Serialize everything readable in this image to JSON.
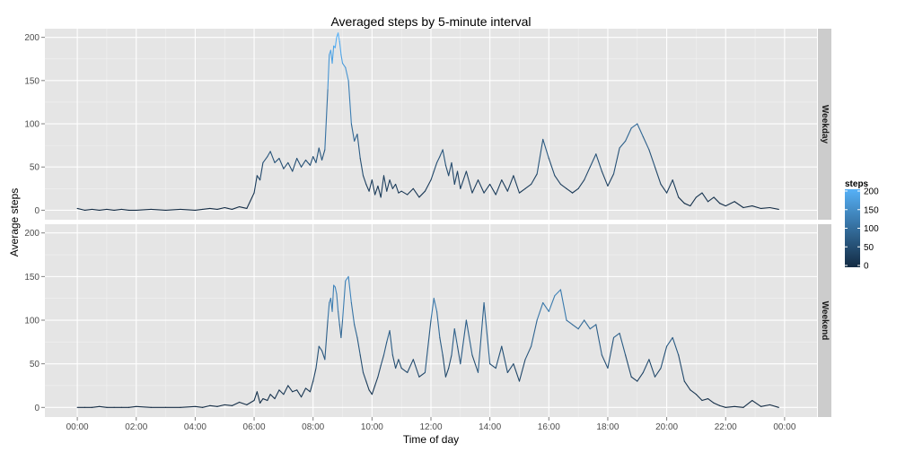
{
  "chart_data": {
    "type": "line",
    "title": "Averaged steps by 5-minute interval",
    "xlabel": "Time of day",
    "ylabel": "Average steps",
    "x_tick_labels": [
      "00:00",
      "02:00",
      "04:00",
      "06:00",
      "08:00",
      "10:00",
      "12:00",
      "14:00",
      "16:00",
      "18:00",
      "20:00",
      "22:00",
      "00:00"
    ],
    "x_tick_hours": [
      0,
      2,
      4,
      6,
      8,
      10,
      12,
      14,
      16,
      18,
      20,
      22,
      24
    ],
    "xlim_hours": [
      -1.1,
      25.1
    ],
    "y_tick_labels": [
      "0",
      "50",
      "100",
      "150",
      "200"
    ],
    "y_tick_values": [
      0,
      50,
      100,
      150,
      200
    ],
    "ylim": [
      -11,
      210
    ],
    "panels": [
      {
        "name": "Weekday",
        "points": [
          [
            0.0,
            2
          ],
          [
            0.25,
            0
          ],
          [
            0.5,
            1
          ],
          [
            0.75,
            0
          ],
          [
            1.0,
            1
          ],
          [
            1.25,
            0
          ],
          [
            1.5,
            1
          ],
          [
            1.75,
            0
          ],
          [
            2.0,
            0
          ],
          [
            2.5,
            1
          ],
          [
            3.0,
            0
          ],
          [
            3.5,
            1
          ],
          [
            4.0,
            0
          ],
          [
            4.25,
            1
          ],
          [
            4.5,
            2
          ],
          [
            4.75,
            1
          ],
          [
            5.0,
            3
          ],
          [
            5.25,
            1
          ],
          [
            5.5,
            4
          ],
          [
            5.75,
            2
          ],
          [
            6.0,
            20
          ],
          [
            6.1,
            40
          ],
          [
            6.2,
            35
          ],
          [
            6.3,
            55
          ],
          [
            6.45,
            62
          ],
          [
            6.55,
            68
          ],
          [
            6.7,
            55
          ],
          [
            6.85,
            60
          ],
          [
            7.0,
            48
          ],
          [
            7.15,
            55
          ],
          [
            7.3,
            45
          ],
          [
            7.45,
            60
          ],
          [
            7.6,
            50
          ],
          [
            7.75,
            58
          ],
          [
            7.9,
            52
          ],
          [
            8.0,
            62
          ],
          [
            8.1,
            55
          ],
          [
            8.2,
            72
          ],
          [
            8.3,
            58
          ],
          [
            8.4,
            70
          ],
          [
            8.5,
            140
          ],
          [
            8.55,
            180
          ],
          [
            8.6,
            185
          ],
          [
            8.65,
            170
          ],
          [
            8.7,
            190
          ],
          [
            8.75,
            188
          ],
          [
            8.8,
            200
          ],
          [
            8.85,
            205
          ],
          [
            8.9,
            195
          ],
          [
            8.95,
            180
          ],
          [
            9.0,
            170
          ],
          [
            9.1,
            165
          ],
          [
            9.2,
            150
          ],
          [
            9.3,
            100
          ],
          [
            9.4,
            80
          ],
          [
            9.5,
            88
          ],
          [
            9.6,
            60
          ],
          [
            9.7,
            40
          ],
          [
            9.8,
            30
          ],
          [
            9.9,
            22
          ],
          [
            10.0,
            35
          ],
          [
            10.1,
            18
          ],
          [
            10.2,
            28
          ],
          [
            10.3,
            15
          ],
          [
            10.4,
            40
          ],
          [
            10.5,
            22
          ],
          [
            10.6,
            35
          ],
          [
            10.7,
            25
          ],
          [
            10.8,
            30
          ],
          [
            10.9,
            20
          ],
          [
            11.0,
            22
          ],
          [
            11.2,
            18
          ],
          [
            11.4,
            25
          ],
          [
            11.6,
            15
          ],
          [
            11.8,
            22
          ],
          [
            12.0,
            35
          ],
          [
            12.1,
            45
          ],
          [
            12.2,
            55
          ],
          [
            12.3,
            62
          ],
          [
            12.4,
            70
          ],
          [
            12.5,
            52
          ],
          [
            12.6,
            40
          ],
          [
            12.7,
            55
          ],
          [
            12.8,
            30
          ],
          [
            12.9,
            45
          ],
          [
            13.0,
            25
          ],
          [
            13.2,
            45
          ],
          [
            13.4,
            20
          ],
          [
            13.6,
            35
          ],
          [
            13.8,
            20
          ],
          [
            14.0,
            30
          ],
          [
            14.2,
            18
          ],
          [
            14.4,
            35
          ],
          [
            14.6,
            22
          ],
          [
            14.8,
            40
          ],
          [
            15.0,
            20
          ],
          [
            15.2,
            25
          ],
          [
            15.4,
            30
          ],
          [
            15.6,
            42
          ],
          [
            15.8,
            82
          ],
          [
            16.0,
            60
          ],
          [
            16.2,
            40
          ],
          [
            16.4,
            30
          ],
          [
            16.6,
            25
          ],
          [
            16.8,
            20
          ],
          [
            17.0,
            25
          ],
          [
            17.2,
            35
          ],
          [
            17.4,
            50
          ],
          [
            17.6,
            65
          ],
          [
            17.8,
            45
          ],
          [
            18.0,
            28
          ],
          [
            18.2,
            42
          ],
          [
            18.4,
            72
          ],
          [
            18.6,
            80
          ],
          [
            18.8,
            95
          ],
          [
            19.0,
            100
          ],
          [
            19.2,
            85
          ],
          [
            19.4,
            70
          ],
          [
            19.6,
            50
          ],
          [
            19.8,
            30
          ],
          [
            20.0,
            20
          ],
          [
            20.2,
            35
          ],
          [
            20.4,
            15
          ],
          [
            20.6,
            8
          ],
          [
            20.8,
            5
          ],
          [
            21.0,
            15
          ],
          [
            21.2,
            20
          ],
          [
            21.4,
            10
          ],
          [
            21.6,
            15
          ],
          [
            21.8,
            8
          ],
          [
            22.0,
            5
          ],
          [
            22.3,
            10
          ],
          [
            22.6,
            3
          ],
          [
            22.9,
            5
          ],
          [
            23.2,
            2
          ],
          [
            23.5,
            3
          ],
          [
            23.8,
            1
          ]
        ]
      },
      {
        "name": "Weekend",
        "points": [
          [
            0.0,
            0
          ],
          [
            0.25,
            0
          ],
          [
            0.5,
            0
          ],
          [
            0.75,
            1
          ],
          [
            1.0,
            0
          ],
          [
            1.25,
            0
          ],
          [
            1.5,
            0
          ],
          [
            1.75,
            0
          ],
          [
            2.0,
            1
          ],
          [
            2.5,
            0
          ],
          [
            3.0,
            0
          ],
          [
            3.5,
            0
          ],
          [
            4.0,
            1
          ],
          [
            4.25,
            0
          ],
          [
            4.5,
            2
          ],
          [
            4.75,
            1
          ],
          [
            5.0,
            3
          ],
          [
            5.25,
            2
          ],
          [
            5.5,
            6
          ],
          [
            5.75,
            3
          ],
          [
            6.0,
            8
          ],
          [
            6.1,
            18
          ],
          [
            6.2,
            5
          ],
          [
            6.3,
            10
          ],
          [
            6.45,
            8
          ],
          [
            6.55,
            15
          ],
          [
            6.7,
            10
          ],
          [
            6.85,
            20
          ],
          [
            7.0,
            15
          ],
          [
            7.15,
            25
          ],
          [
            7.3,
            18
          ],
          [
            7.45,
            20
          ],
          [
            7.6,
            12
          ],
          [
            7.75,
            22
          ],
          [
            7.9,
            18
          ],
          [
            8.0,
            30
          ],
          [
            8.1,
            45
          ],
          [
            8.2,
            70
          ],
          [
            8.3,
            65
          ],
          [
            8.4,
            55
          ],
          [
            8.5,
            100
          ],
          [
            8.55,
            120
          ],
          [
            8.6,
            125
          ],
          [
            8.65,
            110
          ],
          [
            8.7,
            140
          ],
          [
            8.75,
            138
          ],
          [
            8.8,
            130
          ],
          [
            8.85,
            110
          ],
          [
            8.9,
            95
          ],
          [
            8.95,
            80
          ],
          [
            9.0,
            100
          ],
          [
            9.1,
            145
          ],
          [
            9.2,
            150
          ],
          [
            9.3,
            120
          ],
          [
            9.4,
            95
          ],
          [
            9.5,
            80
          ],
          [
            9.6,
            60
          ],
          [
            9.7,
            40
          ],
          [
            9.8,
            30
          ],
          [
            9.9,
            20
          ],
          [
            10.0,
            15
          ],
          [
            10.1,
            25
          ],
          [
            10.2,
            35
          ],
          [
            10.3,
            48
          ],
          [
            10.4,
            60
          ],
          [
            10.5,
            75
          ],
          [
            10.6,
            88
          ],
          [
            10.7,
            60
          ],
          [
            10.8,
            45
          ],
          [
            10.9,
            55
          ],
          [
            11.0,
            45
          ],
          [
            11.2,
            40
          ],
          [
            11.4,
            55
          ],
          [
            11.6,
            35
          ],
          [
            11.8,
            40
          ],
          [
            12.0,
            100
          ],
          [
            12.1,
            125
          ],
          [
            12.2,
            110
          ],
          [
            12.3,
            80
          ],
          [
            12.4,
            60
          ],
          [
            12.5,
            35
          ],
          [
            12.6,
            45
          ],
          [
            12.7,
            60
          ],
          [
            12.8,
            90
          ],
          [
            12.9,
            70
          ],
          [
            13.0,
            50
          ],
          [
            13.2,
            100
          ],
          [
            13.4,
            60
          ],
          [
            13.6,
            40
          ],
          [
            13.8,
            120
          ],
          [
            14.0,
            50
          ],
          [
            14.2,
            45
          ],
          [
            14.4,
            70
          ],
          [
            14.6,
            40
          ],
          [
            14.8,
            50
          ],
          [
            15.0,
            30
          ],
          [
            15.2,
            55
          ],
          [
            15.4,
            70
          ],
          [
            15.6,
            100
          ],
          [
            15.8,
            120
          ],
          [
            16.0,
            110
          ],
          [
            16.2,
            128
          ],
          [
            16.4,
            135
          ],
          [
            16.6,
            100
          ],
          [
            16.8,
            95
          ],
          [
            17.0,
            90
          ],
          [
            17.2,
            100
          ],
          [
            17.4,
            90
          ],
          [
            17.6,
            95
          ],
          [
            17.8,
            60
          ],
          [
            18.0,
            45
          ],
          [
            18.2,
            80
          ],
          [
            18.4,
            85
          ],
          [
            18.6,
            60
          ],
          [
            18.8,
            35
          ],
          [
            19.0,
            30
          ],
          [
            19.2,
            40
          ],
          [
            19.4,
            55
          ],
          [
            19.6,
            35
          ],
          [
            19.8,
            45
          ],
          [
            20.0,
            70
          ],
          [
            20.2,
            80
          ],
          [
            20.4,
            60
          ],
          [
            20.6,
            30
          ],
          [
            20.8,
            20
          ],
          [
            21.0,
            15
          ],
          [
            21.2,
            8
          ],
          [
            21.4,
            10
          ],
          [
            21.6,
            5
          ],
          [
            21.8,
            2
          ],
          [
            22.0,
            0
          ],
          [
            22.3,
            1
          ],
          [
            22.6,
            0
          ],
          [
            22.9,
            8
          ],
          [
            23.2,
            1
          ],
          [
            23.5,
            3
          ],
          [
            23.8,
            0
          ]
        ]
      }
    ],
    "legend": {
      "title": "steps",
      "placement": "right",
      "ticks": [
        0,
        50,
        100,
        150,
        200
      ],
      "tick_labels": [
        "0",
        "50",
        "100",
        "150",
        "200"
      ],
      "low_color": "#132B43",
      "high_color": "#56B1F7"
    },
    "grid": true,
    "panel_bg": "#e5e5e5",
    "strip_bg": "#cccccc"
  }
}
